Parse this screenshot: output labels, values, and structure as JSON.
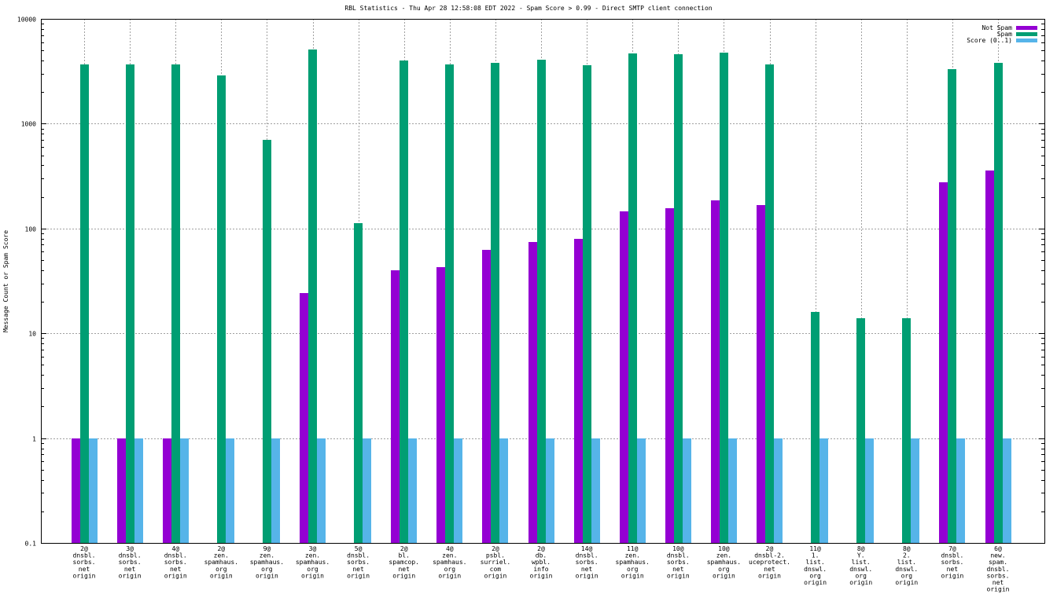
{
  "chart_data": {
    "type": "bar",
    "title": "RBL Statistics - Thu Apr 28 12:58:08 EDT 2022 - Spam Score > 0.99 - Direct SMTP client connection",
    "xlabel": "",
    "ylabel": "Message Count or Spam Score",
    "yscale": "log",
    "ylim": [
      0.1,
      10000
    ],
    "yticks": [
      {
        "value": 10000,
        "label": "10000"
      },
      {
        "value": 1000,
        "label": "1000"
      },
      {
        "value": 100,
        "label": "100"
      },
      {
        "value": 10,
        "label": "10"
      },
      {
        "value": 1,
        "label": "1"
      },
      {
        "value": 0.1,
        "label": "0.1"
      }
    ],
    "grid": true,
    "legend_position": "top-right",
    "categories": [
      [
        "2@",
        "dnsbl.",
        "sorbs.",
        "net",
        "origin"
      ],
      [
        "3@",
        "dnsbl.",
        "sorbs.",
        "net",
        "origin"
      ],
      [
        "4@",
        "dnsbl.",
        "sorbs.",
        "net",
        "origin"
      ],
      [
        "2@",
        "zen.",
        "spamhaus.",
        "org",
        "origin"
      ],
      [
        "9@",
        "zen.",
        "spamhaus.",
        "org",
        "origin"
      ],
      [
        "3@",
        "zen.",
        "spamhaus.",
        "org",
        "origin"
      ],
      [
        "5@",
        "dnsbl.",
        "sorbs.",
        "net",
        "origin"
      ],
      [
        "2@",
        "bl.",
        "spamcop.",
        "net",
        "origin"
      ],
      [
        "4@",
        "zen.",
        "spamhaus.",
        "org",
        "origin"
      ],
      [
        "2@",
        "psbl.",
        "surriel.",
        "com",
        "origin"
      ],
      [
        "2@",
        "db.",
        "wpbl.",
        "info",
        "origin"
      ],
      [
        "14@",
        "dnsbl.",
        "sorbs.",
        "net",
        "origin"
      ],
      [
        "11@",
        "zen.",
        "spamhaus.",
        "org",
        "origin"
      ],
      [
        "10@",
        "dnsbl.",
        "sorbs.",
        "net",
        "origin"
      ],
      [
        "10@",
        "zen.",
        "spamhaus.",
        "org",
        "origin"
      ],
      [
        "2@",
        "dnsbl-2.",
        "uceprotect.",
        "net",
        "origin"
      ],
      [
        "11@",
        "1.",
        "list.",
        "dnswl.",
        "org",
        "origin"
      ],
      [
        "8@",
        "Y.",
        "list.",
        "dnswl.",
        "org",
        "origin"
      ],
      [
        "8@",
        "2.",
        "list.",
        "dnswl.",
        "org",
        "origin"
      ],
      [
        "7@",
        "dnsbl.",
        "sorbs.",
        "net",
        "origin"
      ],
      [
        "6@",
        "new.",
        "spam.",
        "dnsbl.",
        "sorbs.",
        "net",
        "origin"
      ]
    ],
    "series": [
      {
        "name": "Not Spam",
        "color": "#9400d3",
        "values": [
          1,
          1,
          1,
          null,
          null,
          24,
          null,
          40,
          43,
          62,
          74,
          80,
          145,
          156,
          186,
          166,
          null,
          null,
          null,
          276,
          357
        ]
      },
      {
        "name": "Spam",
        "color": "#009e73",
        "values": [
          3700,
          3700,
          3700,
          2900,
          700,
          5100,
          113,
          4000,
          3700,
          3800,
          4100,
          3600,
          4700,
          4600,
          4800,
          3650,
          16,
          14,
          14,
          3300,
          3800
        ]
      },
      {
        "name": "Score (0..1)",
        "color": "#56b4e9",
        "values": [
          1,
          1,
          1,
          1,
          1,
          1,
          1,
          1,
          1,
          1,
          1,
          1,
          1,
          1,
          1,
          1,
          1,
          1,
          1,
          1,
          1
        ]
      }
    ]
  }
}
